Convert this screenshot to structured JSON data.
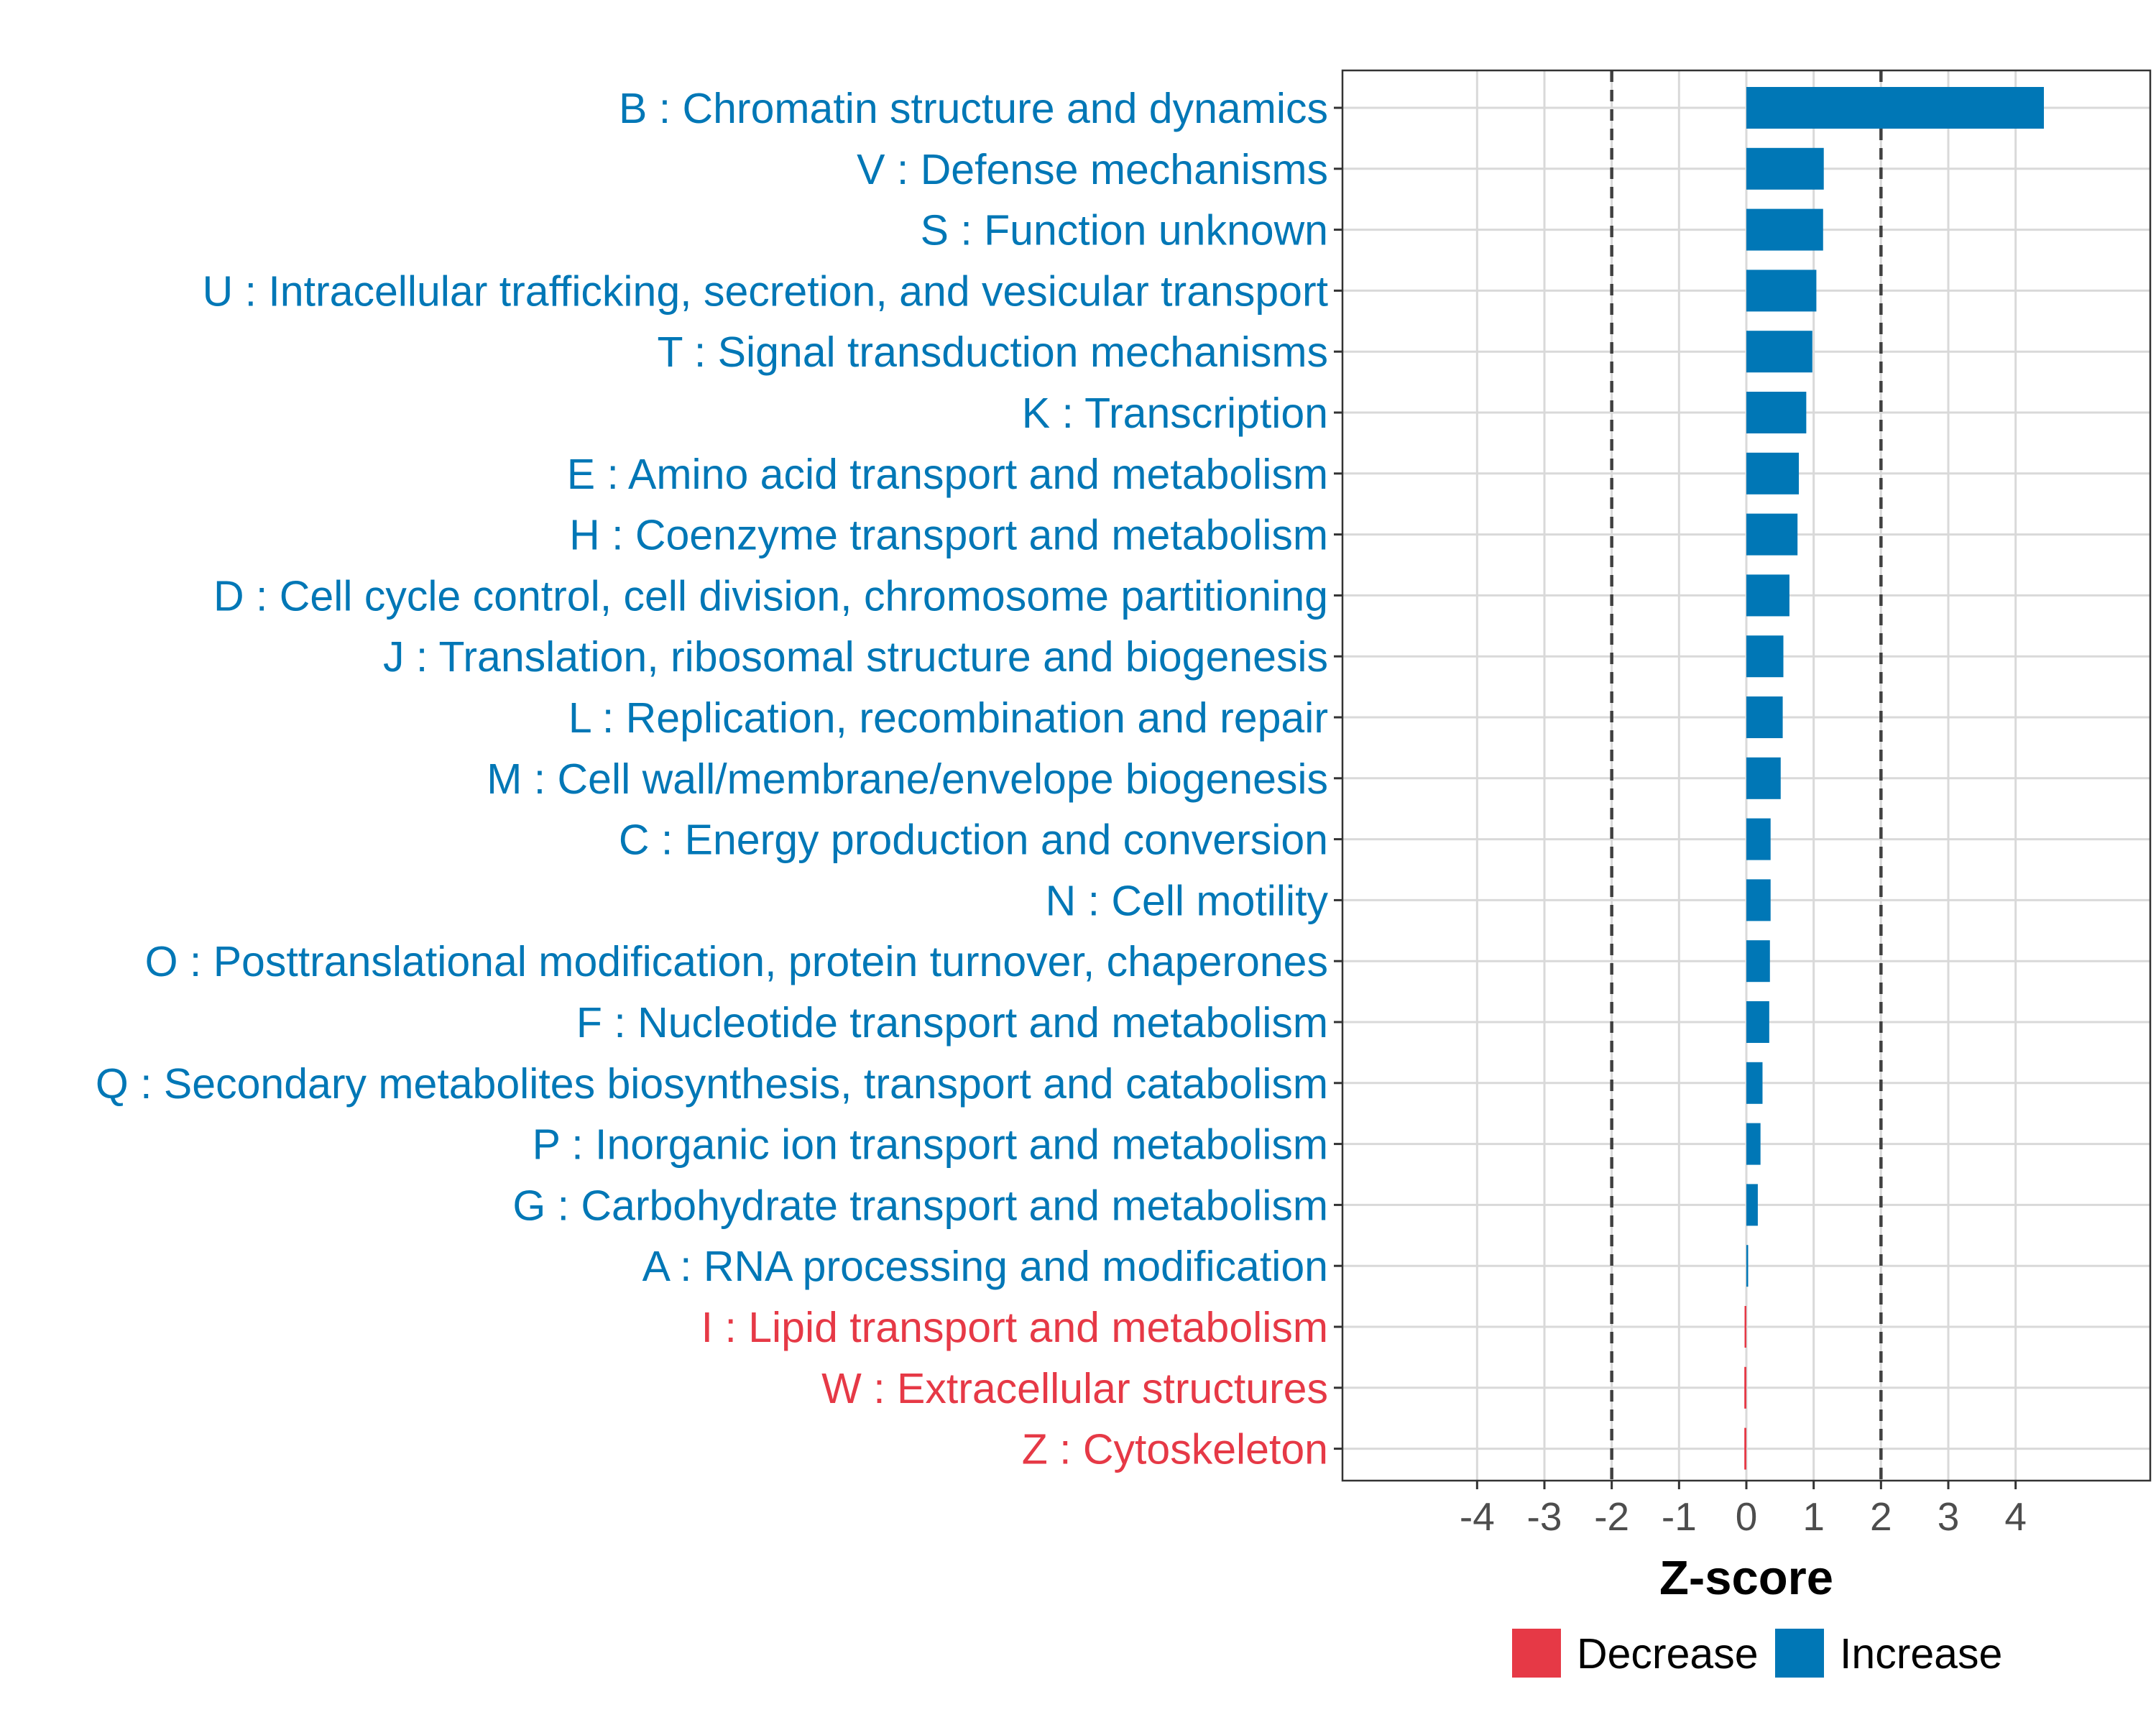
{
  "chart_data": {
    "type": "bar",
    "orientation": "horizontal",
    "title": "",
    "xlabel": "Z-score",
    "ylabel": "",
    "xlim": [
      -6,
      6
    ],
    "xticks": [
      "-4",
      "-3",
      "-2",
      "-1",
      "0",
      "1",
      "2",
      "3",
      "4"
    ],
    "threshold_lines": [
      -2,
      2
    ],
    "categories": [
      "B : Chromatin structure and dynamics",
      "V : Defense mechanisms",
      "S : Function unknown",
      "U : Intracellular trafficking, secretion, and vesicular transport",
      "T : Signal transduction mechanisms",
      "K : Transcription",
      "E : Amino acid transport and metabolism",
      "H : Coenzyme transport and metabolism",
      "D : Cell cycle control, cell division, chromosome partitioning",
      "J : Translation, ribosomal structure and biogenesis",
      "L : Replication, recombination and repair",
      "M : Cell wall/membrane/envelope biogenesis",
      "C : Energy production and conversion",
      "N : Cell motility",
      "O : Posttranslational modification, protein turnover, chaperones",
      "F : Nucleotide transport and metabolism",
      "Q : Secondary metabolites biosynthesis, transport and catabolism",
      "P : Inorganic ion transport and metabolism",
      "G : Carbohydrate transport and metabolism",
      "A : RNA processing and modification",
      "I : Lipid transport and metabolism",
      "W : Extracellular structures",
      "Z : Cytoskeleton"
    ],
    "values": [
      4.42,
      1.15,
      1.14,
      1.04,
      0.98,
      0.89,
      0.78,
      0.76,
      0.64,
      0.55,
      0.54,
      0.51,
      0.36,
      0.36,
      0.35,
      0.34,
      0.24,
      0.21,
      0.17,
      0.01,
      -0.01,
      -0.03,
      -0.03
    ],
    "legend": {
      "position": "bottom",
      "entries": [
        {
          "label": "Decrease",
          "color": "#E63946"
        },
        {
          "label": "Increase",
          "color": "#0077B6"
        }
      ]
    }
  },
  "colors": {
    "increase": "#0077B6",
    "decrease": "#E63946",
    "grid": "#d9d9d9",
    "threshold": "#404040",
    "panel_border": "#333333"
  }
}
